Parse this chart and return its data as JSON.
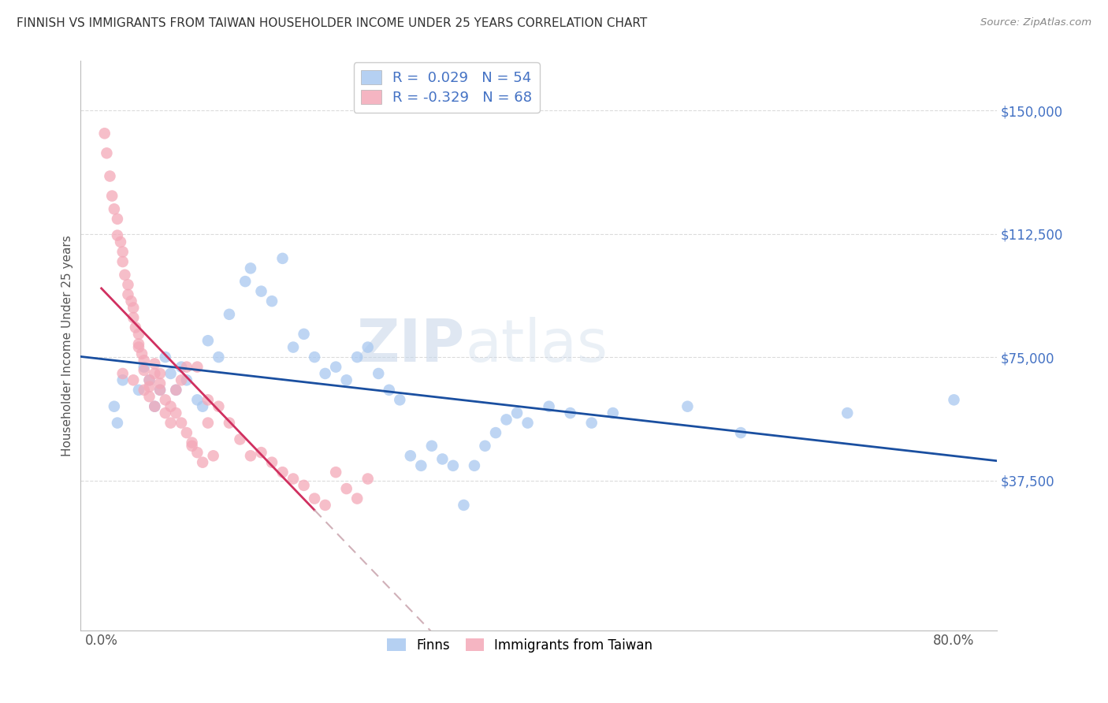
{
  "title": "FINNISH VS IMMIGRANTS FROM TAIWAN HOUSEHOLDER INCOME UNDER 25 YEARS CORRELATION CHART",
  "source": "Source: ZipAtlas.com",
  "ylabel": "Householder Income Under 25 years",
  "xlabel": "",
  "background_color": "#ffffff",
  "title_fontsize": 11,
  "title_color": "#333333",
  "source_color": "#888888",
  "watermark_zip": "ZIP",
  "watermark_atlas": "atlas",
  "r_finns": 0.029,
  "n_finns": 54,
  "r_taiwan": -0.329,
  "n_taiwan": 68,
  "finns_color": "#a8c8f0",
  "taiwan_color": "#f4a8b8",
  "finns_line_color": "#1a4fa0",
  "taiwan_line_color": "#d03060",
  "taiwan_dash_color": "#d0b0b8",
  "grid_color": "#d8d8d8",
  "ytick_color": "#4472c4",
  "ytick_labels": [
    "$150,000",
    "$112,500",
    "$75,000",
    "$37,500"
  ],
  "ytick_values": [
    150000,
    112500,
    75000,
    37500
  ],
  "xtick_labels": [
    "0.0%",
    "80.0%"
  ],
  "xtick_values": [
    0.0,
    80.0
  ],
  "xlim": [
    -2,
    84
  ],
  "ylim": [
    -8000,
    165000
  ],
  "finns_x": [
    1.2,
    1.5,
    2.0,
    3.5,
    4.0,
    4.5,
    5.0,
    5.5,
    6.0,
    6.5,
    7.0,
    7.5,
    8.0,
    9.0,
    9.5,
    10.0,
    11.0,
    12.0,
    13.5,
    14.0,
    15.0,
    16.0,
    17.0,
    18.0,
    19.0,
    20.0,
    21.0,
    22.0,
    23.0,
    24.0,
    25.0,
    26.0,
    27.0,
    28.0,
    29.0,
    30.0,
    31.0,
    32.0,
    33.0,
    34.0,
    35.0,
    36.0,
    37.0,
    38.0,
    39.0,
    40.0,
    42.0,
    44.0,
    46.0,
    48.0,
    55.0,
    60.0,
    70.0,
    80.0
  ],
  "finns_y": [
    60000,
    55000,
    68000,
    65000,
    72000,
    68000,
    60000,
    65000,
    75000,
    70000,
    65000,
    72000,
    68000,
    62000,
    60000,
    80000,
    75000,
    88000,
    98000,
    102000,
    95000,
    92000,
    105000,
    78000,
    82000,
    75000,
    70000,
    72000,
    68000,
    75000,
    78000,
    70000,
    65000,
    62000,
    45000,
    42000,
    48000,
    44000,
    42000,
    30000,
    42000,
    48000,
    52000,
    56000,
    58000,
    55000,
    60000,
    58000,
    55000,
    58000,
    60000,
    52000,
    58000,
    62000
  ],
  "taiwan_x": [
    0.3,
    0.5,
    0.8,
    1.0,
    1.2,
    1.5,
    1.5,
    1.8,
    2.0,
    2.0,
    2.2,
    2.5,
    2.5,
    2.8,
    3.0,
    3.0,
    3.2,
    3.5,
    3.5,
    3.8,
    4.0,
    4.0,
    4.5,
    4.5,
    5.0,
    5.0,
    5.5,
    5.5,
    6.0,
    6.5,
    7.0,
    7.5,
    8.0,
    8.5,
    9.0,
    9.5,
    10.0,
    11.0,
    12.0,
    13.0,
    14.0,
    15.0,
    16.0,
    17.0,
    18.0,
    19.0,
    20.0,
    21.0,
    22.0,
    23.0,
    24.0,
    25.0,
    4.0,
    5.0,
    6.0,
    8.0,
    10.0,
    3.5,
    7.0,
    9.0,
    2.0,
    3.0,
    4.5,
    6.5,
    8.5,
    10.5,
    5.5,
    7.5
  ],
  "taiwan_y": [
    143000,
    137000,
    130000,
    124000,
    120000,
    117000,
    112000,
    110000,
    107000,
    104000,
    100000,
    97000,
    94000,
    92000,
    90000,
    87000,
    84000,
    82000,
    79000,
    76000,
    74000,
    71000,
    68000,
    66000,
    73000,
    70000,
    67000,
    65000,
    62000,
    60000,
    58000,
    55000,
    52000,
    49000,
    46000,
    43000,
    62000,
    60000,
    55000,
    50000,
    45000,
    46000,
    43000,
    40000,
    38000,
    36000,
    32000,
    30000,
    40000,
    35000,
    32000,
    38000,
    65000,
    60000,
    58000,
    72000,
    55000,
    78000,
    65000,
    72000,
    70000,
    68000,
    63000,
    55000,
    48000,
    45000,
    70000,
    68000
  ]
}
